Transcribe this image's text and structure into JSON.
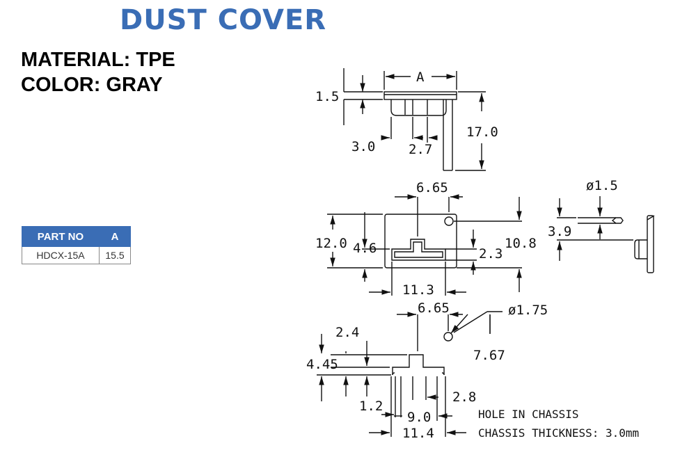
{
  "title": "DUST COVER",
  "specs": {
    "material": "MATERIAL: TPE",
    "color": "COLOR: GRAY"
  },
  "table": {
    "headers": [
      "PART NO",
      "A"
    ],
    "rows": [
      {
        "part_no": "HDCX-15A",
        "a": "15.5"
      }
    ]
  },
  "dims": {
    "a": "A",
    "d1_5": "1.5",
    "d3_0": "3.0",
    "d2_7": "2.7",
    "d17_0": "17.0",
    "d6_65_top": "6.65",
    "d12_0": "12.0",
    "d4_6": "4.6",
    "d10_8": "10.8",
    "d2_3": "2.3",
    "d11_3": "11.3",
    "phi1_5": "ø1.5",
    "d3_9": "3.9",
    "d6_65_bottom": "6.65",
    "phi1_75": "ø1.75",
    "d2_4": "2.4",
    "d4_45": "4.45",
    "d7_67": "7.67",
    "d1_2": "1.2",
    "d2_8": "2.8",
    "d9_0": "9.0",
    "d11_4": "11.4"
  },
  "notes": {
    "hole": "HOLE IN CHASSIS",
    "thickness": "CHASSIS THICKNESS: 3.0mm"
  }
}
